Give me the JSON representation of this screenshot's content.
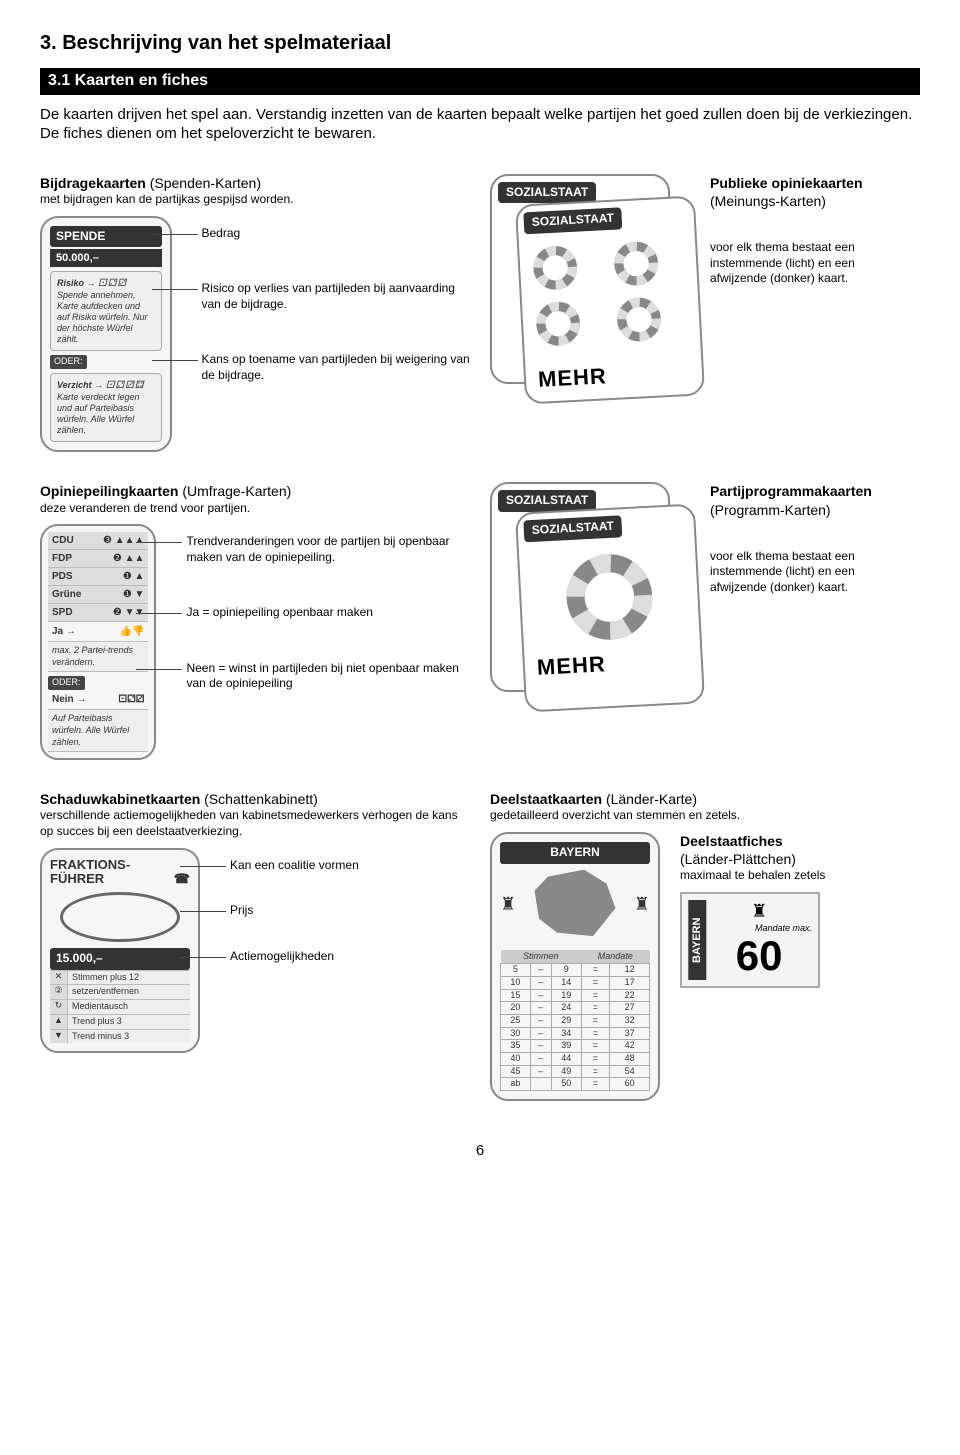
{
  "section_title": "3. Beschrijving van het spelmateriaal",
  "subsection_bar": "3.1 Kaarten en fiches",
  "intro_1": "De kaarten drijven het spel aan. Verstandig inzetten van de kaarten bepaalt welke partijen het goed zullen doen bij de verkiezingen. De fiches dienen om het speloverzicht te bewaren.",
  "bijdrage": {
    "title_b": "Bijdragekaarten",
    "title_l": " (Spenden-Karten)",
    "sub": "met bijdragen kan de partijkas gespijsd worden.",
    "card": {
      "hdr1": "SPENDE",
      "hdr2": "50.000,–",
      "risiko_label": "Risiko →",
      "risiko_text": "Spende annehmen, Karte aufdecken und auf Risiko würfeln. Nur der höchste Würfel zählt.",
      "oder": "ODER:",
      "verzicht_label": "Verzicht →",
      "verzicht_text": "Karte verdeckt legen und auf Parteibasis würfeln. Alle Würfel zählen.",
      "dice1": "⚀⚁⚂",
      "dice2": "⚀⚁⚂⚃"
    },
    "callouts": {
      "c1": "Bedrag",
      "c2": "Risico op verlies van partijleden bij aanvaarding van de bijdrage.",
      "c3": "Kans op toename van partijleden bij weigering van de bijdrage."
    }
  },
  "publieke": {
    "title_b": "Publieke opiniekaarten",
    "title_l": "(Meinungs-Karten)",
    "side": "voor elk thema bestaat een instemmende (licht) en een afwijzende (donker) kaart.",
    "pill_back": "SOZIALSTAAT",
    "pill_front": "SOZIALSTAAT",
    "mehr": "MEHR"
  },
  "opiniepeiling": {
    "title_b": "Opiniepeilingkaarten",
    "title_l": " (Umfrage-Karten)",
    "sub": "deze veranderen de trend voor partijen.",
    "parties": [
      {
        "name": "CDU",
        "val": "❸ ▲▲▲"
      },
      {
        "name": "FDP",
        "val": "❷ ▲▲"
      },
      {
        "name": "PDS",
        "val": "❶ ▲"
      },
      {
        "name": "Grüne",
        "val": "❶ ▼"
      },
      {
        "name": "SPD",
        "val": "❷ ▼▼"
      }
    ],
    "ja_label": "Ja →",
    "ja_sub": "max. 2 Partei-trends verändern.",
    "ja_icon": "👍👎",
    "oder": "ODER:",
    "nein_label": "Nein →",
    "nein_sub": "Auf Parteibasis würfeln. Alle Würfel zählen.",
    "nein_icon": "⚀⚁⚂",
    "callouts": {
      "c1": "Trendveranderingen voor de partijen bij openbaar maken van de opiniepeiling.",
      "c2": "Ja = opiniepeiling openbaar maken",
      "c3": "Neen = winst in partijleden bij niet openbaar maken van de opiniepeiling"
    }
  },
  "programma": {
    "title_b": "Partijprogrammakaarten",
    "title_l": "(Programm-Karten)",
    "side": "voor elk thema bestaat een instemmende (licht) en een afwijzende (donker) kaart.",
    "pill_back": "SOZIALSTAAT",
    "pill_front": "SOZIALSTAAT",
    "mehr": "MEHR"
  },
  "schaduw": {
    "title_b": "Schaduwkabinetkaarten",
    "title_l": " (Schattenkabinett)",
    "sub": "verschillende actiemogelijkheden van kabinetsmedewerkers verhogen de kans op succes bij een deelstaatverkiezing.",
    "card": {
      "hdr1": "FRAKTIONS-",
      "hdr2": "FÜHRER",
      "phone": "☎",
      "price": "15.000,–",
      "rows": [
        {
          "ic": "✕",
          "tx": "Stimmen plus 12"
        },
        {
          "ic": "②",
          "tx": "setzen/entfernen"
        },
        {
          "ic": "↻",
          "tx": "Medientausch"
        },
        {
          "ic": "▲",
          "tx": "Trend plus 3"
        },
        {
          "ic": "▼",
          "tx": "Trend minus 3"
        }
      ]
    },
    "callouts": {
      "c1": "Kan een coalitie vormen",
      "c2": "Prijs",
      "c3": "Actiemogelijkheden"
    }
  },
  "deelstaat": {
    "title_b": "Deelstaatkaarten",
    "title_l": " (Länder-Karte)",
    "sub": "gedetailleerd overzicht van stemmen en zetels.",
    "card_title": "BAYERN",
    "th1": "Stimmen",
    "th2": "Mandate",
    "rows": [
      [
        "5",
        "–",
        "9",
        "=",
        "12"
      ],
      [
        "10",
        "–",
        "14",
        "=",
        "17"
      ],
      [
        "15",
        "–",
        "19",
        "=",
        "22"
      ],
      [
        "20",
        "–",
        "24",
        "=",
        "27"
      ],
      [
        "25",
        "–",
        "29",
        "=",
        "32"
      ],
      [
        "30",
        "–",
        "34",
        "=",
        "37"
      ],
      [
        "35",
        "–",
        "39",
        "=",
        "42"
      ],
      [
        "40",
        "–",
        "44",
        "=",
        "48"
      ],
      [
        "45",
        "–",
        "49",
        "=",
        "54"
      ],
      [
        "ab",
        "",
        "50",
        "=",
        "60"
      ]
    ]
  },
  "fiche": {
    "title_b": "Deelstaatfiches",
    "title_l": "(Länder-Plättchen)",
    "sub": "maximaal te behalen zetels",
    "side": "BAYERN",
    "sm": "Mandate max.",
    "big": "60"
  },
  "page_num": "6"
}
